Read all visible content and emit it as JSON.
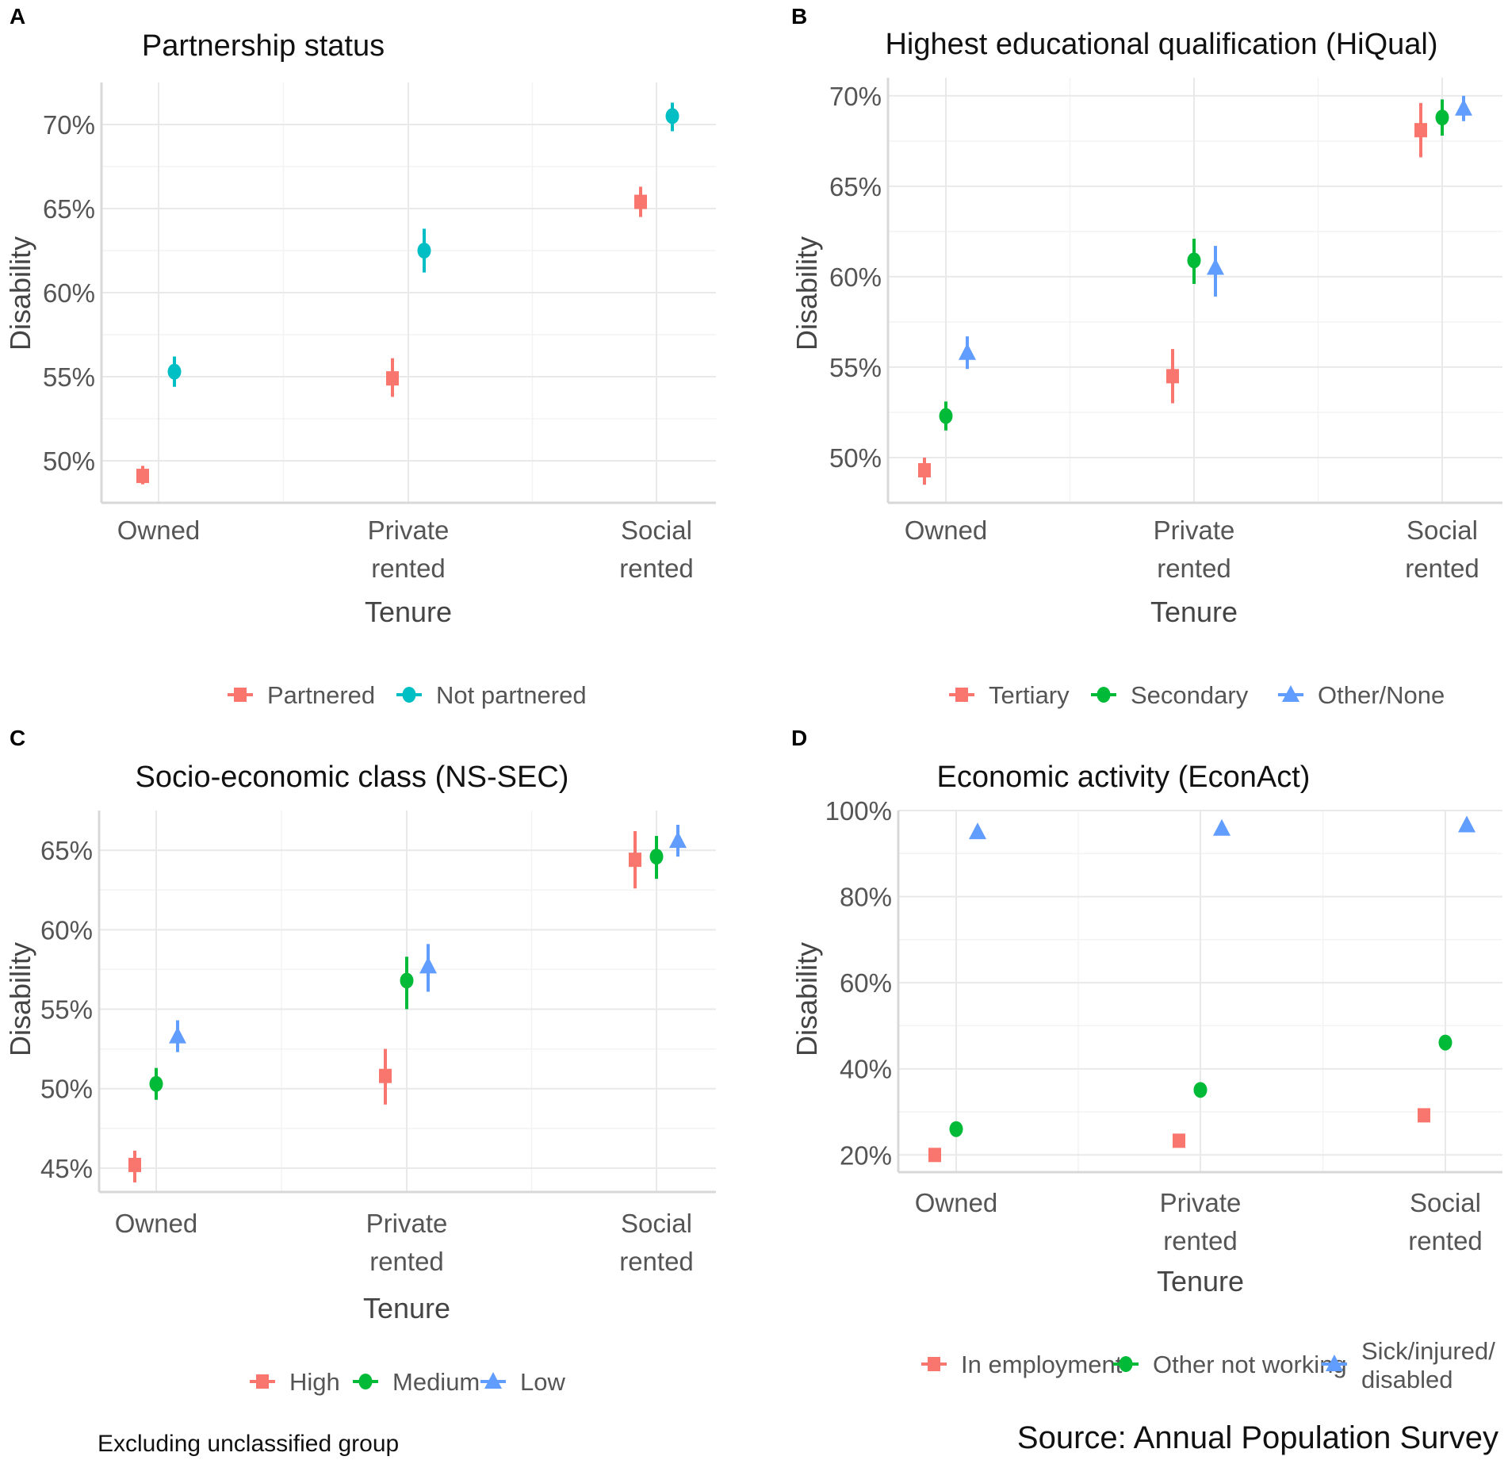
{
  "colors": {
    "red": "#f8766d",
    "green": "#00ba38",
    "teal": "#00bfc4",
    "blue": "#619cff"
  },
  "footer": {
    "note": "Excluding unclassified group",
    "source": "Source: Annual Population Survey"
  },
  "chart_data": [
    {
      "type": "scatter",
      "panel": "A",
      "title": "Partnership status",
      "xlabel": "Tenure",
      "ylabel": "Disability",
      "categories": [
        [
          "Owned"
        ],
        [
          "Private",
          "rented"
        ],
        [
          "Social",
          "rented"
        ]
      ],
      "ylim": [
        47.5,
        72.5
      ],
      "yticks": [
        50,
        55,
        60,
        65,
        70
      ],
      "ytick_labels": [
        "50%",
        "55%",
        "60%",
        "65%",
        "70%"
      ],
      "series": [
        {
          "name": "Partnered",
          "color": "red",
          "shape": "square",
          "values": [
            49.1,
            54.9,
            65.4
          ],
          "lower": [
            48.6,
            53.8,
            64.5
          ],
          "upper": [
            49.7,
            56.1,
            66.3
          ]
        },
        {
          "name": "Not partnered",
          "color": "teal",
          "shape": "circle",
          "values": [
            55.3,
            62.5,
            70.5
          ],
          "lower": [
            54.4,
            61.2,
            69.6
          ],
          "upper": [
            56.2,
            63.8,
            71.3
          ]
        }
      ]
    },
    {
      "type": "scatter",
      "panel": "B",
      "title": "Highest educational qualification (HiQual)",
      "xlabel": "Tenure",
      "ylabel": "Disability",
      "categories": [
        [
          "Owned"
        ],
        [
          "Private",
          "rented"
        ],
        [
          "Social",
          "rented"
        ]
      ],
      "ylim": [
        47.5,
        71
      ],
      "yticks": [
        50,
        55,
        60,
        65,
        70
      ],
      "ytick_labels": [
        "50%",
        "55%",
        "60%",
        "65%",
        "70%"
      ],
      "series": [
        {
          "name": "Tertiary",
          "color": "red",
          "shape": "square",
          "values": [
            49.3,
            54.5,
            68.1
          ],
          "lower": [
            48.5,
            53.0,
            66.6
          ],
          "upper": [
            50.0,
            56.0,
            69.6
          ]
        },
        {
          "name": "Secondary",
          "color": "green",
          "shape": "circle",
          "values": [
            52.3,
            60.9,
            68.8
          ],
          "lower": [
            51.5,
            59.6,
            67.8
          ],
          "upper": [
            53.1,
            62.1,
            69.8
          ]
        },
        {
          "name": "Other/None",
          "color": "blue",
          "shape": "triangle",
          "values": [
            55.8,
            60.5,
            69.3
          ],
          "lower": [
            54.9,
            58.9,
            68.6
          ],
          "upper": [
            56.7,
            61.7,
            70.0
          ]
        }
      ]
    },
    {
      "type": "scatter",
      "panel": "C",
      "title": "Socio-economic class (NS-SEC)",
      "xlabel": "Tenure",
      "ylabel": "Disability",
      "categories": [
        [
          "Owned"
        ],
        [
          "Private",
          "rented"
        ],
        [
          "Social",
          "rented"
        ]
      ],
      "ylim": [
        43.5,
        67.5
      ],
      "yticks": [
        45,
        50,
        55,
        60,
        65
      ],
      "ytick_labels": [
        "45%",
        "50%",
        "55%",
        "60%",
        "65%"
      ],
      "series": [
        {
          "name": "High",
          "color": "red",
          "shape": "square",
          "values": [
            45.2,
            50.8,
            64.4
          ],
          "lower": [
            44.1,
            49.0,
            62.6
          ],
          "upper": [
            46.1,
            52.5,
            66.2
          ]
        },
        {
          "name": "Medium",
          "color": "green",
          "shape": "circle",
          "values": [
            50.3,
            56.8,
            64.6
          ],
          "lower": [
            49.3,
            55.0,
            63.2
          ],
          "upper": [
            51.3,
            58.3,
            65.9
          ]
        },
        {
          "name": "Low",
          "color": "blue",
          "shape": "triangle",
          "values": [
            53.3,
            57.7,
            65.6
          ],
          "lower": [
            52.3,
            56.1,
            64.6
          ],
          "upper": [
            54.3,
            59.1,
            66.6
          ]
        }
      ]
    },
    {
      "type": "scatter",
      "panel": "D",
      "title": "Economic activity (EconAct)",
      "xlabel": "Tenure",
      "ylabel": "Disability",
      "categories": [
        [
          "Owned"
        ],
        [
          "Private",
          "rented"
        ],
        [
          "Social",
          "rented"
        ]
      ],
      "ylim": [
        16,
        100
      ],
      "yticks": [
        20,
        40,
        60,
        80,
        100
      ],
      "ytick_labels": [
        "20%",
        "40%",
        "60%",
        "80%",
        "100%"
      ],
      "series": [
        {
          "name": "In employment",
          "color": "red",
          "shape": "square",
          "values": [
            20.0,
            23.3,
            29.2
          ],
          "lower": [
            19.4,
            22.6,
            28.5
          ],
          "upper": [
            20.6,
            24.0,
            29.9
          ]
        },
        {
          "name": "Other not working",
          "color": "green",
          "shape": "circle",
          "values": [
            26.0,
            35.1,
            46.1
          ],
          "lower": [
            25.3,
            34.4,
            45.4
          ],
          "upper": [
            26.7,
            35.8,
            46.8
          ]
        },
        {
          "name": "Sick/injured/ disabled",
          "color": "blue",
          "shape": "triangle",
          "values": [
            95.0,
            95.8,
            96.6
          ],
          "lower": [
            94.3,
            95.2,
            96.0
          ],
          "upper": [
            95.7,
            96.4,
            97.2
          ]
        }
      ]
    }
  ]
}
